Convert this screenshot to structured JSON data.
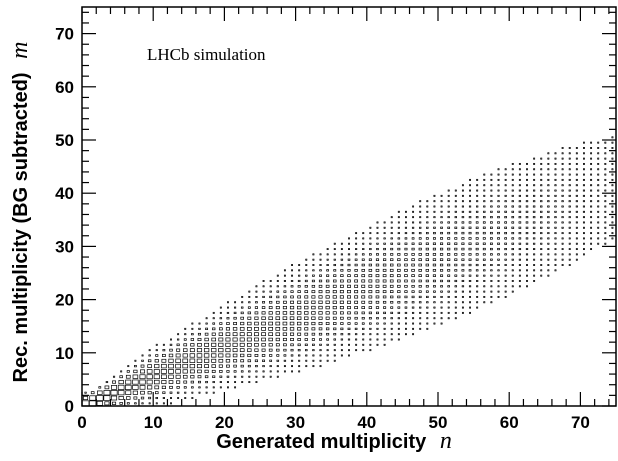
{
  "chart_data": {
    "type": "heatmap",
    "annotation": "LHCb simulation",
    "xlabel": "Generated multiplicity",
    "xlabel_var": "n",
    "ylabel": "Rec. multiplicity (BG subtracted)",
    "ylabel_var": "m",
    "xlim": [
      0,
      75
    ],
    "ylim": [
      0,
      75
    ],
    "x_ticks": [
      "0",
      "10",
      "20",
      "30",
      "40",
      "50",
      "60",
      "70"
    ],
    "y_ticks": [
      "0",
      "10",
      "20",
      "30",
      "40",
      "50",
      "60",
      "70"
    ],
    "x_tick_values": [
      0,
      10,
      20,
      30,
      40,
      50,
      60,
      70
    ],
    "y_tick_values": [
      0,
      10,
      20,
      30,
      40,
      50,
      60,
      70
    ],
    "bin_width": 1,
    "grid": false,
    "response_model": {
      "mean_slope": 0.55,
      "sigma_at_x": [
        [
          2,
          0.9
        ],
        [
          10,
          2.0
        ],
        [
          30,
          4.0
        ],
        [
          50,
          5.5
        ],
        [
          74,
          6.5
        ]
      ]
    },
    "mark_style": "open-squares"
  }
}
